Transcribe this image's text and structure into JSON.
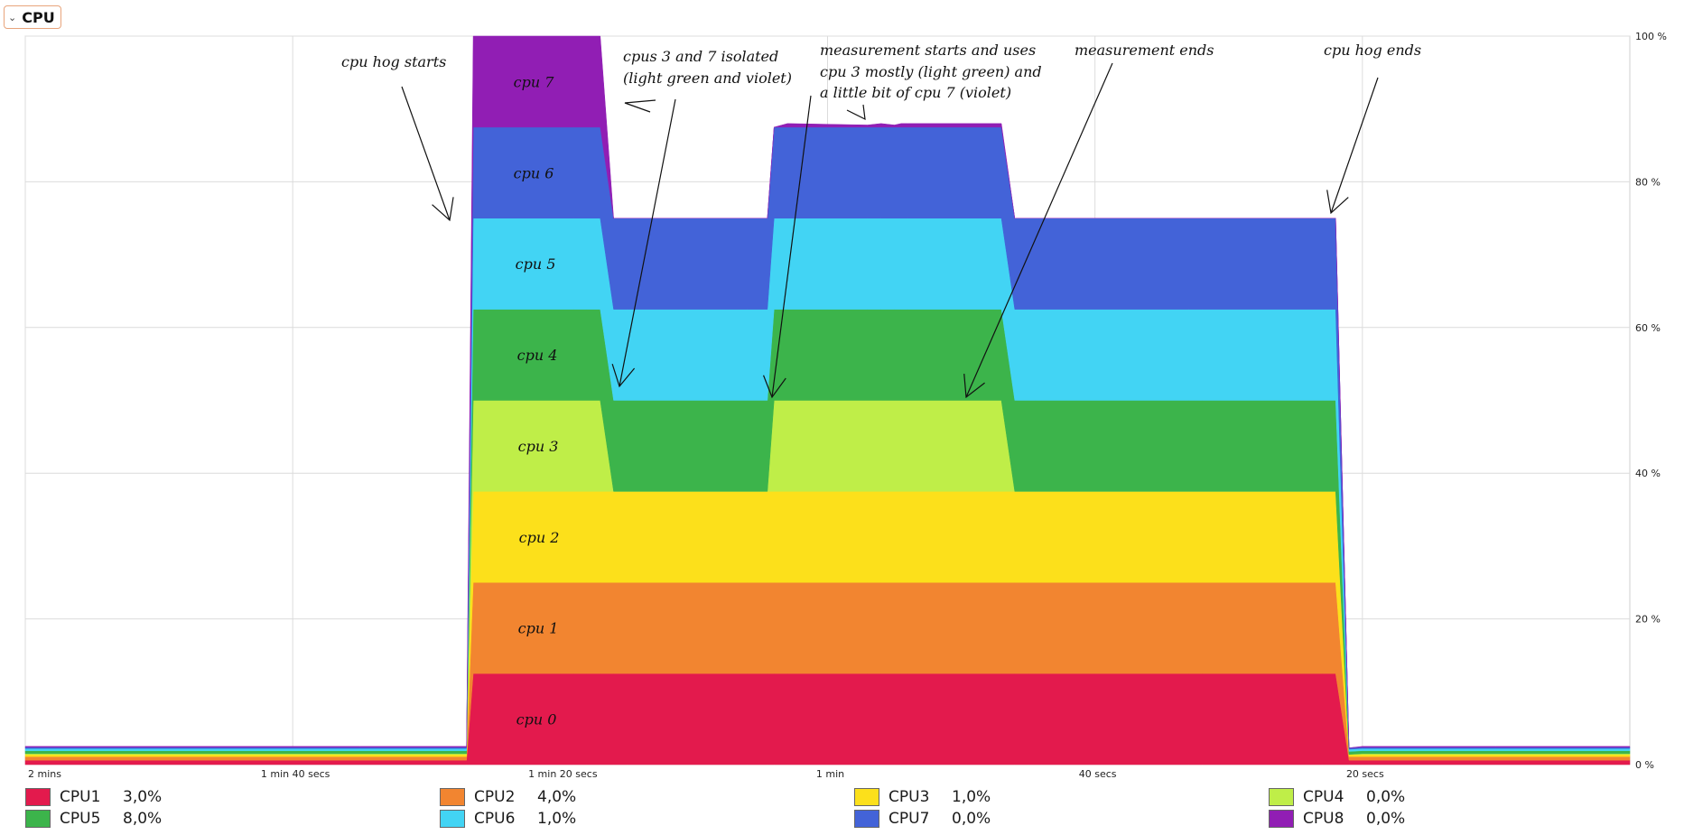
{
  "header": {
    "title": "CPU",
    "chevron_icon": "chevron-down-icon"
  },
  "chart_data": {
    "type": "area",
    "stacked": true,
    "ylim": [
      0,
      100
    ],
    "y_ticks": [
      "100 %",
      "80 %",
      "60 %",
      "40 %",
      "20 %",
      "0 %"
    ],
    "x_ticks": [
      "2 mins",
      "1 min 40 secs",
      "1 min 20 secs",
      "1 min",
      "40 secs",
      "20 secs"
    ],
    "x_seconds_ago": [
      120,
      100,
      80,
      60,
      40,
      20
    ],
    "x_range_seconds_ago": [
      120,
      0
    ],
    "grid": true,
    "legend_position": "bottom",
    "x": [
      120,
      95,
      87,
      86.5,
      86,
      79,
      78,
      77,
      76,
      75,
      66,
      65,
      64.5,
      64,
      63,
      57,
      56,
      55,
      54.5,
      54,
      47,
      46,
      45,
      44.5,
      44,
      33,
      32,
      23,
      22,
      21,
      20,
      10,
      0
    ],
    "series": [
      {
        "name": "CPU1",
        "color": "#e31a4d",
        "values": [
          0.6,
          0.6,
          0.6,
          12.5,
          12.5,
          12.5,
          12.5,
          12.5,
          12.5,
          12.5,
          12.5,
          12.5,
          12.5,
          12.5,
          12.5,
          12.5,
          12.5,
          12.5,
          12.5,
          12.5,
          12.5,
          12.5,
          12.5,
          12.5,
          12.5,
          12.5,
          12.5,
          12.5,
          12.5,
          0.6,
          0.6,
          0.6,
          0.6
        ]
      },
      {
        "name": "CPU2",
        "color": "#f28530",
        "values": [
          0.5,
          0.5,
          0.5,
          12.5,
          12.5,
          12.5,
          12.5,
          12.5,
          12.5,
          12.5,
          12.5,
          12.5,
          12.5,
          12.5,
          12.5,
          12.5,
          12.5,
          12.5,
          12.5,
          12.5,
          12.5,
          12.5,
          12.5,
          12.5,
          12.5,
          12.5,
          12.5,
          12.5,
          12.5,
          0.5,
          0.5,
          0.5,
          0.5
        ]
      },
      {
        "name": "CPU3",
        "color": "#fce01b",
        "values": [
          0.3,
          0.3,
          0.3,
          12.5,
          12.5,
          12.5,
          12.5,
          12.5,
          12.5,
          12.5,
          12.5,
          12.5,
          12.5,
          12.5,
          12.5,
          12.5,
          12.5,
          12.5,
          12.5,
          12.5,
          12.5,
          12.5,
          12.5,
          12.5,
          12.5,
          12.5,
          12.5,
          12.5,
          12.5,
          0.3,
          0.3,
          0.3,
          0.3
        ]
      },
      {
        "name": "CPU4",
        "color": "#bfee48",
        "values": [
          0.1,
          0.1,
          0.1,
          12.5,
          12.5,
          12.5,
          12.5,
          12.5,
          0,
          0,
          0,
          0,
          0,
          12.5,
          12.5,
          12.5,
          12.5,
          12.5,
          12.5,
          12.5,
          12.5,
          0,
          0,
          0,
          0,
          0,
          0,
          0,
          0,
          0,
          0.1,
          0.1,
          0.1
        ]
      },
      {
        "name": "CPU5",
        "color": "#3cb44b",
        "values": [
          0.4,
          0.4,
          0.4,
          12.5,
          12.5,
          12.5,
          12.5,
          12.5,
          12.5,
          12.5,
          12.5,
          12.5,
          12.5,
          12.5,
          12.5,
          12.5,
          12.5,
          12.5,
          12.5,
          12.5,
          12.5,
          12.5,
          12.5,
          12.5,
          12.5,
          12.5,
          12.5,
          12.5,
          12.5,
          0.4,
          0.4,
          0.4,
          0.4
        ]
      },
      {
        "name": "CPU6",
        "color": "#42d4f4",
        "values": [
          0.3,
          0.3,
          0.3,
          12.5,
          12.5,
          12.5,
          12.5,
          12.5,
          12.5,
          12.5,
          12.5,
          12.5,
          12.5,
          12.5,
          12.5,
          12.5,
          12.5,
          12.5,
          12.5,
          12.5,
          12.5,
          12.5,
          12.5,
          12.5,
          12.5,
          12.5,
          12.5,
          12.5,
          12.5,
          0.3,
          0.3,
          0.3,
          0.3
        ]
      },
      {
        "name": "CPU7",
        "color": "#4363d8",
        "values": [
          0.2,
          0.2,
          0.2,
          12.5,
          12.5,
          12.5,
          12.5,
          12.5,
          12.5,
          12.5,
          12.5,
          12.5,
          12.5,
          12.5,
          12.5,
          12.5,
          12.5,
          12.5,
          12.5,
          12.5,
          12.5,
          12.5,
          12.5,
          12.5,
          12.5,
          12.5,
          12.5,
          12.5,
          12.5,
          0.2,
          0.2,
          0.2,
          0.2
        ]
      },
      {
        "name": "CPU8",
        "color": "#911eb4",
        "values": [
          0.1,
          0.1,
          0.1,
          12.5,
          12.5,
          12.5,
          12.5,
          12.5,
          0,
          0,
          0,
          0,
          0,
          0,
          0.5,
          0.3,
          0.5,
          0.3,
          0.5,
          0.5,
          0.5,
          0,
          0,
          0,
          0,
          0,
          0,
          0,
          0,
          0,
          0.1,
          0.1,
          0.1
        ]
      }
    ],
    "band_labels": [
      "cpu 0",
      "cpu 1",
      "cpu 2",
      "cpu 3",
      "cpu 4",
      "cpu 5",
      "cpu 6",
      "cpu 7"
    ],
    "annotations": [
      "cpu hog starts",
      "cpus 3 and 7 isolated",
      "(light green and violet)",
      "measurement starts and uses",
      "cpu 3 mostly (light green) and",
      "a little bit of cpu 7 (violet)",
      "measurement ends",
      "cpu hog ends"
    ]
  },
  "legend": [
    {
      "name": "CPU1",
      "value": "3,0%",
      "color": "#e31a4d"
    },
    {
      "name": "CPU2",
      "value": "4,0%",
      "color": "#f28530"
    },
    {
      "name": "CPU3",
      "value": "1,0%",
      "color": "#fce01b"
    },
    {
      "name": "CPU4",
      "value": "0,0%",
      "color": "#bfee48"
    },
    {
      "name": "CPU5",
      "value": "8,0%",
      "color": "#3cb44b"
    },
    {
      "name": "CPU6",
      "value": "1,0%",
      "color": "#42d4f4"
    },
    {
      "name": "CPU7",
      "value": "0,0%",
      "color": "#4363d8"
    },
    {
      "name": "CPU8",
      "value": "0,0%",
      "color": "#911eb4"
    }
  ]
}
